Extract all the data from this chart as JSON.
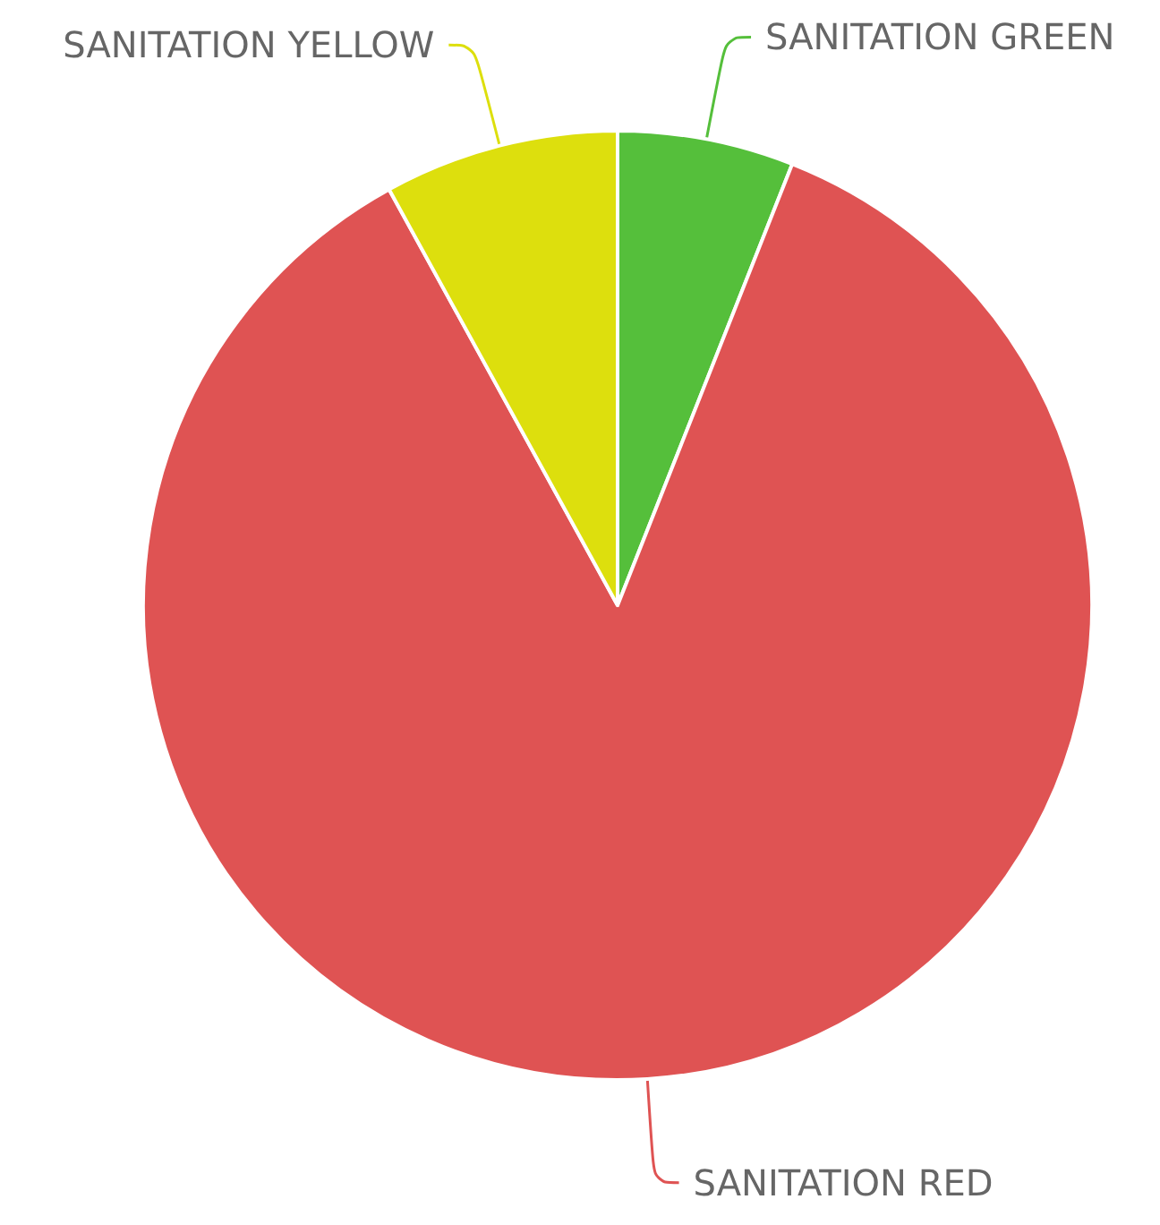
{
  "chart_data": {
    "type": "pie",
    "categories": [
      "SANITATION GREEN",
      "SANITATION RED",
      "SANITATION YELLOW"
    ],
    "values": [
      6,
      86,
      8
    ],
    "colors": [
      "#55bf3b",
      "#df5353",
      "#dddf0d"
    ]
  }
}
